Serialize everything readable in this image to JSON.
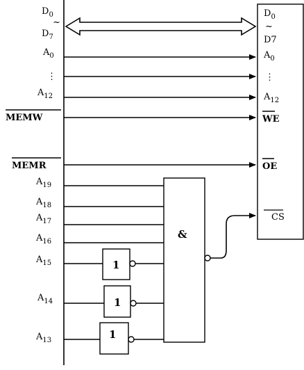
{
  "bus": {
    "data_top": "D",
    "data_top_sub": "0",
    "tilde": "~",
    "data_bottom": "D",
    "data_bottom_sub": "7",
    "addr_top": "A",
    "addr_top_sub": "0",
    "dots": "⋮",
    "addr_bottom": "A",
    "addr_bottom_sub": "12",
    "memw": "MEMW",
    "memr": "MEMR",
    "a19": "A",
    "a19_sub": "19",
    "a18": "A",
    "a18_sub": "18",
    "a17": "A",
    "a17_sub": "17",
    "a16": "A",
    "a16_sub": "16",
    "a15": "A",
    "a15_sub": "15",
    "a14": "A",
    "a14_sub": "14",
    "a13": "A",
    "a13_sub": "13"
  },
  "chip": {
    "d0": "D",
    "d0_sub": "0",
    "tilde": "~",
    "d7": "D7",
    "a0": "A",
    "a0_sub": "0",
    "dots": "⋮",
    "a12": "A",
    "a12_sub": "12",
    "we": "WE",
    "oe": "OE",
    "cs": "CS"
  },
  "gates": {
    "and_label": "&",
    "not1_label": "1",
    "not2_label": "1",
    "not3_label": "1"
  }
}
